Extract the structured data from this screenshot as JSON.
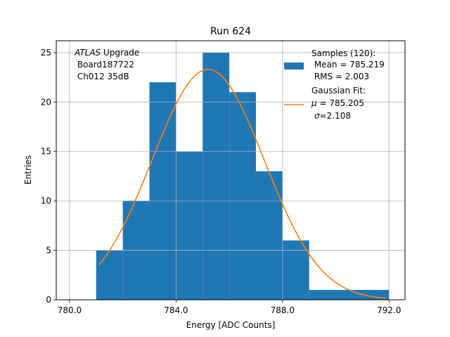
{
  "chart_data": {
    "type": "bar",
    "title": "Run 624",
    "xlabel": "Energy [ADC Counts]",
    "ylabel": "Entries",
    "xlim": [
      779.5,
      792.6
    ],
    "ylim": [
      0,
      26.2
    ],
    "xticks": [
      780.0,
      784.0,
      788.0,
      792.0
    ],
    "xtick_labels": [
      "780.0",
      "784.0",
      "788.0",
      "792.0"
    ],
    "yticks": [
      0,
      5,
      10,
      15,
      20,
      25
    ],
    "ytick_labels": [
      "0",
      "5",
      "10",
      "15",
      "20",
      "25"
    ],
    "grid": true,
    "legend_position": "top-right",
    "histogram": {
      "name": "Samples (120):",
      "bin_edges": [
        781.0,
        782.0,
        783.0,
        784.0,
        785.0,
        786.0,
        787.0,
        788.0,
        789.0,
        790.0,
        791.0,
        792.0
      ],
      "counts": [
        5,
        10,
        22,
        15,
        25,
        21,
        13,
        6,
        1,
        1,
        1
      ],
      "stats_lines": [
        " Mean = 785.219",
        " RMS = 2.003"
      ]
    },
    "fit": {
      "name": "Gaussian Fit:",
      "mu": 785.205,
      "sigma": 2.108,
      "peak": 23.3,
      "x_range": [
        781.1,
        791.9
      ],
      "param_lines": [
        {
          "symbol": "μ",
          "text": " = 785.205"
        },
        {
          "symbol": "σ",
          "text": "=2.108"
        }
      ]
    },
    "annotation": {
      "italic": "ATLAS",
      "rest": " Upgrade",
      "lines": [
        " Board187722",
        " Ch012 35dB"
      ]
    },
    "colors": {
      "bars": "#1f77b4",
      "fit_line": "#ff7f0e",
      "grid": "#b0b0b0",
      "axes": "#000000"
    }
  }
}
